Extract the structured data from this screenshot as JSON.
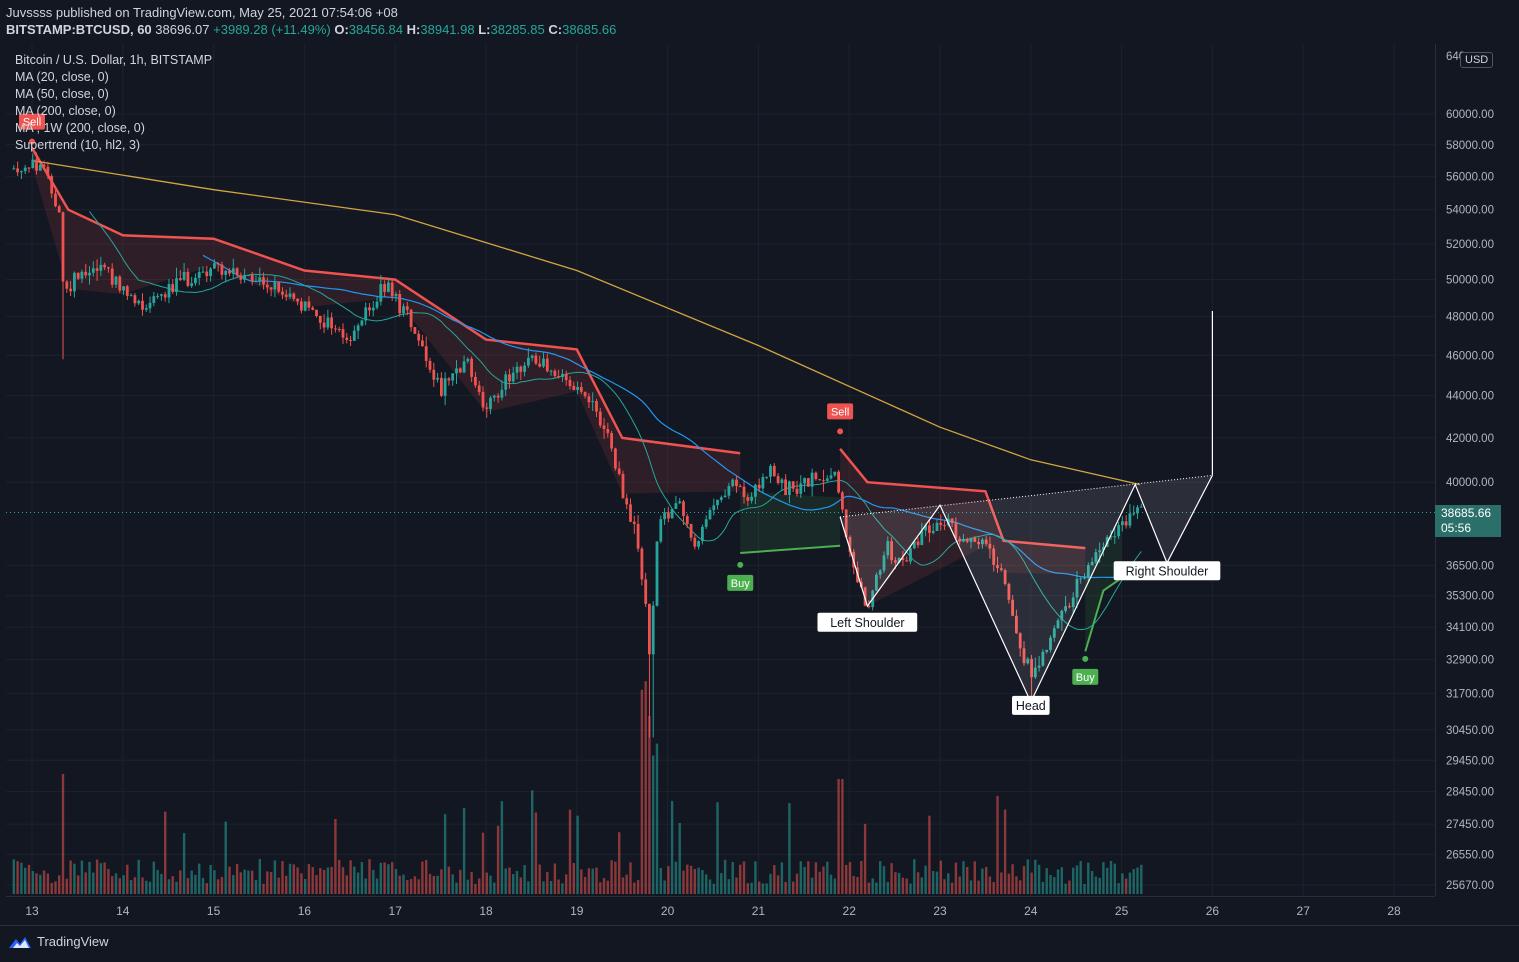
{
  "header": {
    "published_line": "Juvssss published on TradingView.com, May 25, 2021 07:54:06 +08",
    "symbol_line": {
      "symbol": "BITSTAMP:BTCUSD, 60",
      "last": "38696.07",
      "change": "+3989.28 (+11.49%)",
      "o_label": "O:",
      "o": "38456.84",
      "h_label": "H:",
      "h": "38941.98",
      "l_label": "L:",
      "l": "38285.85",
      "c_label": "C:",
      "c": "38685.66"
    }
  },
  "legend": {
    "title": "Bitcoin / U.S. Dollar, 1h, BITSTAMP",
    "items": [
      "MA (20, close, 0)",
      "MA (50, close, 0)",
      "MA (200, close, 0)",
      "MA , 1W (200, close, 0)",
      "Supertrend (10, hl2, 3)"
    ]
  },
  "price_axis": {
    "currency": "USD",
    "last_price": "38685.66",
    "countdown": "05:56",
    "top_partial": "640",
    "ticks": [
      "60000.00",
      "58000.00",
      "56000.00",
      "54000.00",
      "52000.00",
      "50000.00",
      "48000.00",
      "46000.00",
      "44000.00",
      "42000.00",
      "40000.00",
      "36500.00",
      "35300.00",
      "34100.00",
      "32900.00",
      "31700.00",
      "30450.00",
      "29450.00",
      "28450.00",
      "27450.00",
      "26550.00",
      "25670.00"
    ]
  },
  "time_axis": {
    "ticks": [
      "13",
      "14",
      "15",
      "16",
      "17",
      "18",
      "19",
      "20",
      "21",
      "22",
      "23",
      "24",
      "25",
      "26",
      "27",
      "28"
    ]
  },
  "chart_data": {
    "type": "candlestick",
    "symbol": "BITSTAMP:BTCUSD",
    "interval": "1h",
    "colors": {
      "up": "#26a69a",
      "down": "#ef5350",
      "ma20": "#26a69a",
      "ma50": "#2196f3",
      "ma200": "#d4a540",
      "supertrend_up": "#4caf50",
      "supertrend_down": "#ef5350",
      "pattern": "#ffffff",
      "background": "#131722"
    },
    "day_labels": [
      13,
      14,
      15,
      16,
      17,
      18,
      19,
      20,
      21,
      22,
      23,
      24,
      25,
      26,
      27,
      28
    ],
    "price_range": [
      24500,
      64000
    ],
    "ma200_approx": [
      {
        "day": 13.0,
        "price": 57000
      },
      {
        "day": 15.0,
        "price": 55200
      },
      {
        "day": 17.0,
        "price": 53700
      },
      {
        "day": 19.0,
        "price": 50500
      },
      {
        "day": 21.0,
        "price": 46500
      },
      {
        "day": 23.0,
        "price": 42500
      },
      {
        "day": 24.0,
        "price": 41000
      },
      {
        "day": 25.2,
        "price": 39900
      }
    ],
    "supertrend_approx": [
      {
        "day": 13.0,
        "price": 57800,
        "side": "down"
      },
      {
        "day": 13.4,
        "price": 54000,
        "side": "down"
      },
      {
        "day": 14.0,
        "price": 52500,
        "side": "down"
      },
      {
        "day": 15.0,
        "price": 52300,
        "side": "down"
      },
      {
        "day": 16.0,
        "price": 50500,
        "side": "down"
      },
      {
        "day": 17.0,
        "price": 50000,
        "side": "down"
      },
      {
        "day": 18.0,
        "price": 46800,
        "side": "down"
      },
      {
        "day": 19.0,
        "price": 46300,
        "side": "down"
      },
      {
        "day": 19.5,
        "price": 42000,
        "side": "down"
      },
      {
        "day": 20.8,
        "price": 41300,
        "side": "down"
      },
      {
        "day": 20.8,
        "price": 37000,
        "side": "up"
      },
      {
        "day": 21.9,
        "price": 37300,
        "side": "up"
      },
      {
        "day": 21.9,
        "price": 41500,
        "side": "down"
      },
      {
        "day": 22.2,
        "price": 40000,
        "side": "down"
      },
      {
        "day": 23.5,
        "price": 39600,
        "side": "down"
      },
      {
        "day": 23.7,
        "price": 37500,
        "side": "down"
      },
      {
        "day": 24.6,
        "price": 37200,
        "side": "down"
      },
      {
        "day": 24.6,
        "price": 33200,
        "side": "up"
      },
      {
        "day": 24.8,
        "price": 35500,
        "side": "up"
      },
      {
        "day": 25.0,
        "price": 36000,
        "side": "up"
      }
    ],
    "signals": [
      {
        "label": "Sell",
        "day": 13.0,
        "price": 58200
      },
      {
        "label": "Buy",
        "day": 20.8,
        "price": 36600
      },
      {
        "label": "Sell",
        "day": 21.9,
        "price": 42300
      },
      {
        "label": "Buy",
        "day": 24.6,
        "price": 33000
      }
    ],
    "head_and_shoulders": {
      "neckline_text": "",
      "labels": [
        {
          "text": "Left Shoulder",
          "day": 22.2,
          "price": 34300
        },
        {
          "text": "Head",
          "day": 24.0,
          "price": 31300
        },
        {
          "text": "Right Shoulder",
          "day": 25.5,
          "price": 36300
        }
      ],
      "target_price": 48300
    },
    "volume_scale_top": "max"
  }
}
